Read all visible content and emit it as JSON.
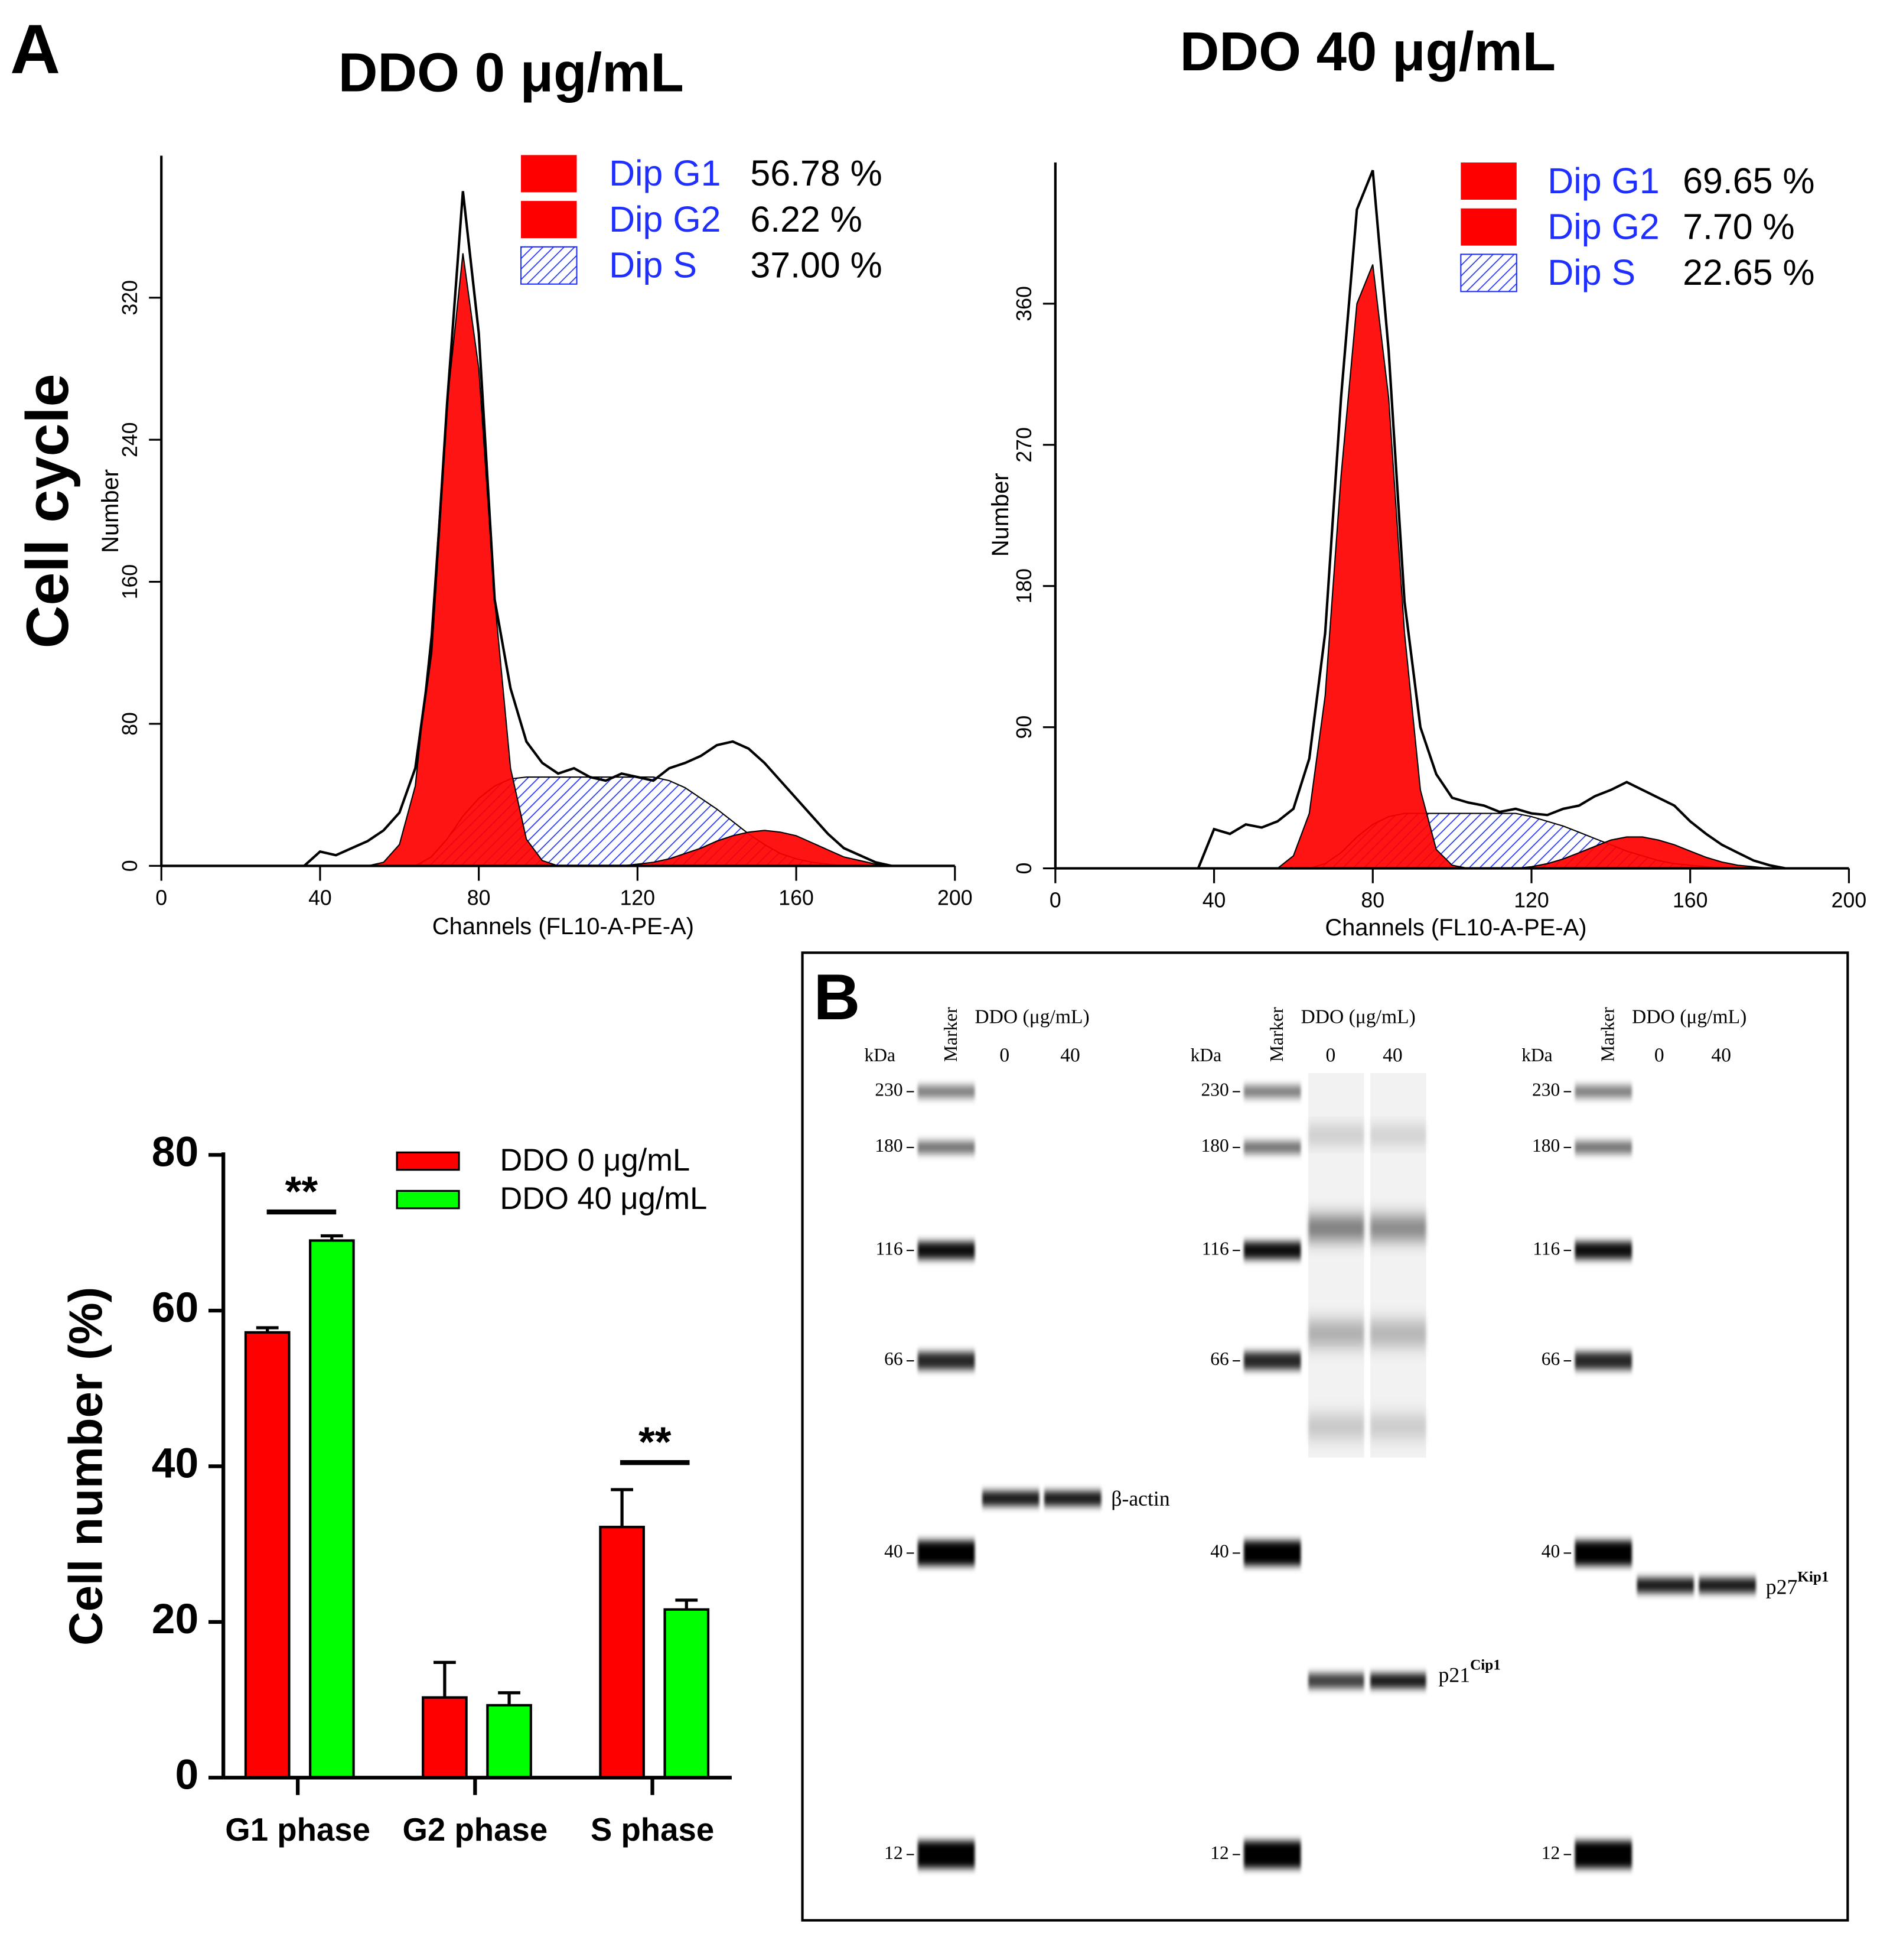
{
  "panel_label": "A",
  "row_label": "Cell cycle",
  "chart_data": [
    {
      "type": "histogram_fit",
      "title": "DDO 0 μg/mL",
      "xlabel": "Channels (FL10-A-PE-A)",
      "ylabel": "Number",
      "xlim": [
        0,
        200
      ],
      "xticks": [
        0,
        40,
        80,
        120,
        160,
        200
      ],
      "ylim": [
        0,
        400
      ],
      "yticks": [
        0,
        80,
        160,
        240,
        320
      ],
      "x": [
        36,
        40,
        44,
        48,
        52,
        56,
        60,
        64,
        68,
        72,
        76,
        80,
        84,
        88,
        92,
        96,
        100,
        104,
        108,
        112,
        116,
        120,
        124,
        128,
        132,
        136,
        140,
        144,
        148,
        152,
        156,
        160,
        164,
        168,
        172,
        176,
        180,
        184
      ],
      "series": [
        {
          "kind": "line",
          "color": "#000000",
          "values": [
            0,
            8,
            6,
            10,
            14,
            20,
            30,
            55,
            120,
            260,
            380,
            300,
            150,
            100,
            70,
            58,
            52,
            55,
            50,
            48,
            52,
            50,
            48,
            55,
            58,
            62,
            68,
            70,
            66,
            58,
            48,
            38,
            28,
            18,
            10,
            6,
            2,
            0
          ]
        },
        {
          "name": "Dip G1",
          "kind": "solid",
          "color": "#ff0000",
          "share": 56.78,
          "share_label": "56.78 %",
          "values": [
            0,
            0,
            0,
            0,
            0,
            2,
            12,
            45,
            130,
            260,
            345,
            280,
            150,
            55,
            15,
            3,
            0,
            0,
            0,
            0,
            0,
            0,
            0,
            0,
            0,
            0,
            0,
            0,
            0,
            0,
            0,
            0,
            0,
            0,
            0,
            0,
            0,
            0
          ]
        },
        {
          "name": "Dip G2",
          "kind": "solid",
          "color": "#ff0000",
          "share": 6.22,
          "share_label": "6.22 %",
          "values": [
            0,
            0,
            0,
            0,
            0,
            0,
            0,
            0,
            0,
            0,
            0,
            0,
            0,
            0,
            0,
            0,
            0,
            0,
            0,
            0,
            0,
            1,
            2,
            4,
            7,
            10,
            14,
            17,
            19,
            20,
            19,
            17,
            13,
            9,
            5,
            3,
            1,
            0
          ]
        },
        {
          "name": "Dip S",
          "kind": "hatch",
          "color": "#1f2fff",
          "share": 37.0,
          "share_label": "37.00 %",
          "values": [
            0,
            0,
            0,
            0,
            0,
            0,
            0,
            0,
            5,
            15,
            28,
            38,
            45,
            49,
            50,
            50,
            50,
            50,
            50,
            50,
            50,
            50,
            50,
            48,
            44,
            38,
            32,
            25,
            18,
            12,
            7,
            4,
            2,
            1,
            0,
            0,
            0,
            0
          ]
        }
      ]
    },
    {
      "type": "histogram_fit",
      "title": "DDO 40 μg/mL",
      "xlabel": "Channels (FL10-A-PE-A)",
      "ylabel": "Number",
      "xlim": [
        0,
        200
      ],
      "xticks": [
        0,
        40,
        80,
        120,
        160,
        200
      ],
      "ylim": [
        0,
        450
      ],
      "yticks": [
        0,
        90,
        180,
        270,
        360
      ],
      "x": [
        36,
        40,
        44,
        48,
        52,
        56,
        60,
        64,
        68,
        72,
        76,
        80,
        84,
        88,
        92,
        96,
        100,
        104,
        108,
        112,
        116,
        120,
        124,
        128,
        132,
        136,
        140,
        144,
        148,
        152,
        156,
        160,
        164,
        168,
        172,
        176,
        180,
        184
      ],
      "series": [
        {
          "kind": "line",
          "color": "#000000",
          "values": [
            0,
            25,
            22,
            28,
            26,
            30,
            38,
            70,
            150,
            300,
            420,
            445,
            330,
            170,
            90,
            60,
            45,
            42,
            40,
            36,
            38,
            35,
            34,
            38,
            40,
            46,
            50,
            55,
            50,
            45,
            40,
            30,
            22,
            15,
            10,
            5,
            2,
            0
          ]
        },
        {
          "name": "Dip G1",
          "kind": "solid",
          "color": "#ff0000",
          "share": 69.65,
          "share_label": "69.65 %",
          "values": [
            0,
            0,
            0,
            0,
            0,
            0,
            8,
            35,
            110,
            250,
            360,
            385,
            300,
            150,
            50,
            12,
            2,
            0,
            0,
            0,
            0,
            0,
            0,
            0,
            0,
            0,
            0,
            0,
            0,
            0,
            0,
            0,
            0,
            0,
            0,
            0,
            0,
            0
          ]
        },
        {
          "name": "Dip G2",
          "kind": "solid",
          "color": "#ff0000",
          "share": 7.7,
          "share_label": "7.70 %",
          "values": [
            0,
            0,
            0,
            0,
            0,
            0,
            0,
            0,
            0,
            0,
            0,
            0,
            0,
            0,
            0,
            0,
            0,
            0,
            0,
            0,
            0,
            1,
            3,
            6,
            10,
            14,
            18,
            20,
            20,
            18,
            15,
            11,
            7,
            4,
            2,
            1,
            0,
            0
          ]
        },
        {
          "name": "Dip S",
          "kind": "hatch",
          "color": "#1f2fff",
          "share": 22.65,
          "share_label": "22.65 %",
          "values": [
            0,
            0,
            0,
            0,
            0,
            0,
            0,
            0,
            3,
            10,
            20,
            28,
            33,
            35,
            35,
            35,
            35,
            35,
            35,
            35,
            35,
            33,
            30,
            27,
            23,
            19,
            15,
            11,
            8,
            5,
            3,
            2,
            1,
            0,
            0,
            0,
            0,
            0
          ]
        }
      ]
    },
    {
      "type": "bar",
      "ylabel": "Cell number (%)",
      "categories": [
        "G1 phase",
        "G2 phase",
        "S phase"
      ],
      "ylim": [
        0,
        80
      ],
      "yticks": [
        0,
        20,
        40,
        60,
        80
      ],
      "series": [
        {
          "name": "DDO 0 μg/mL",
          "color": "#ff0000",
          "values": [
            57.2,
            10.3,
            32.2
          ],
          "errors": [
            0.6,
            4.5,
            4.8
          ]
        },
        {
          "name": "DDO 40 μg/mL",
          "color": "#00ff00",
          "values": [
            69.0,
            9.3,
            21.6
          ],
          "errors": [
            0.6,
            1.6,
            1.2
          ]
        }
      ],
      "annotations": [
        "**",
        "**"
      ]
    }
  ],
  "blot": {
    "label": "B",
    "kda": "kDa",
    "marker": "Marker",
    "treatment": "DDO (μg/mL)",
    "lanes": [
      "0",
      "40"
    ],
    "markers": [
      230,
      180,
      116,
      66,
      40,
      12
    ],
    "proteins": [
      {
        "name": "β-actin"
      },
      {
        "name": "p21",
        "sup": "Cip1"
      },
      {
        "name": "p27",
        "sup": "Kip1"
      }
    ]
  }
}
